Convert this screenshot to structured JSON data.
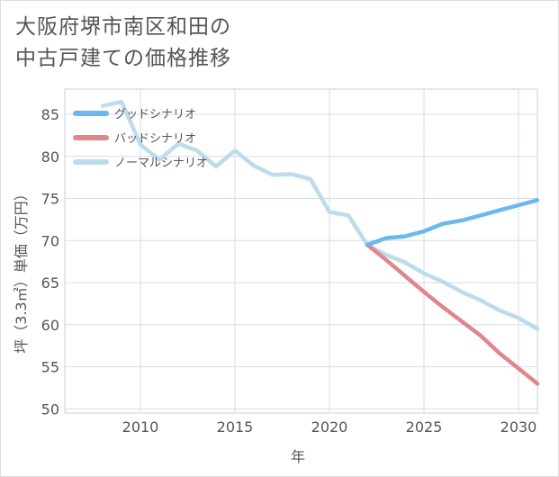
{
  "title_lines": [
    "大阪府堺市南区和田の",
    "中古戸建ての価格推移"
  ],
  "chart_data": {
    "type": "line",
    "title": "大阪府堺市南区和田の中古戸建ての価格推移",
    "xlabel": "年",
    "ylabel": "坪（3.3㎡）単価（万円）",
    "xlim": [
      2006,
      2031
    ],
    "ylim": [
      49.5,
      88
    ],
    "xticks": [
      2010,
      2015,
      2020,
      2025,
      2030
    ],
    "yticks": [
      50,
      55,
      60,
      65,
      70,
      75,
      80,
      85
    ],
    "grid": true,
    "legend_position": "top-left",
    "series": [
      {
        "name": "グッドシナリオ",
        "color": "#6cb8ec",
        "x": [
          2022,
          2023,
          2024,
          2025,
          2026,
          2027,
          2028,
          2029,
          2030,
          2031
        ],
        "values": [
          69.5,
          70.3,
          70.5,
          71.1,
          72.0,
          72.4,
          73.0,
          73.6,
          74.2,
          74.8
        ]
      },
      {
        "name": "バッドシナリオ",
        "color": "#e0868d",
        "x": [
          2022,
          2023,
          2024,
          2025,
          2026,
          2027,
          2028,
          2029,
          2030,
          2031
        ],
        "values": [
          69.5,
          67.7,
          65.8,
          63.9,
          62.1,
          60.4,
          58.7,
          56.6,
          54.8,
          53.0
        ]
      },
      {
        "name": "ノーマルシナリオ",
        "color": "#bcdcec",
        "x": [
          2008,
          2009,
          2010,
          2011,
          2012,
          2013,
          2014,
          2015,
          2016,
          2017,
          2018,
          2019,
          2020,
          2021,
          2022,
          2023,
          2024,
          2025,
          2026,
          2027,
          2028,
          2029,
          2030,
          2031
        ],
        "values": [
          86.0,
          86.5,
          81.4,
          79.6,
          81.5,
          80.7,
          78.8,
          80.7,
          78.9,
          77.8,
          77.9,
          77.3,
          73.4,
          73.0,
          69.5,
          68.3,
          67.4,
          66.1,
          65.1,
          63.9,
          62.9,
          61.7,
          60.8,
          59.5
        ]
      }
    ]
  }
}
